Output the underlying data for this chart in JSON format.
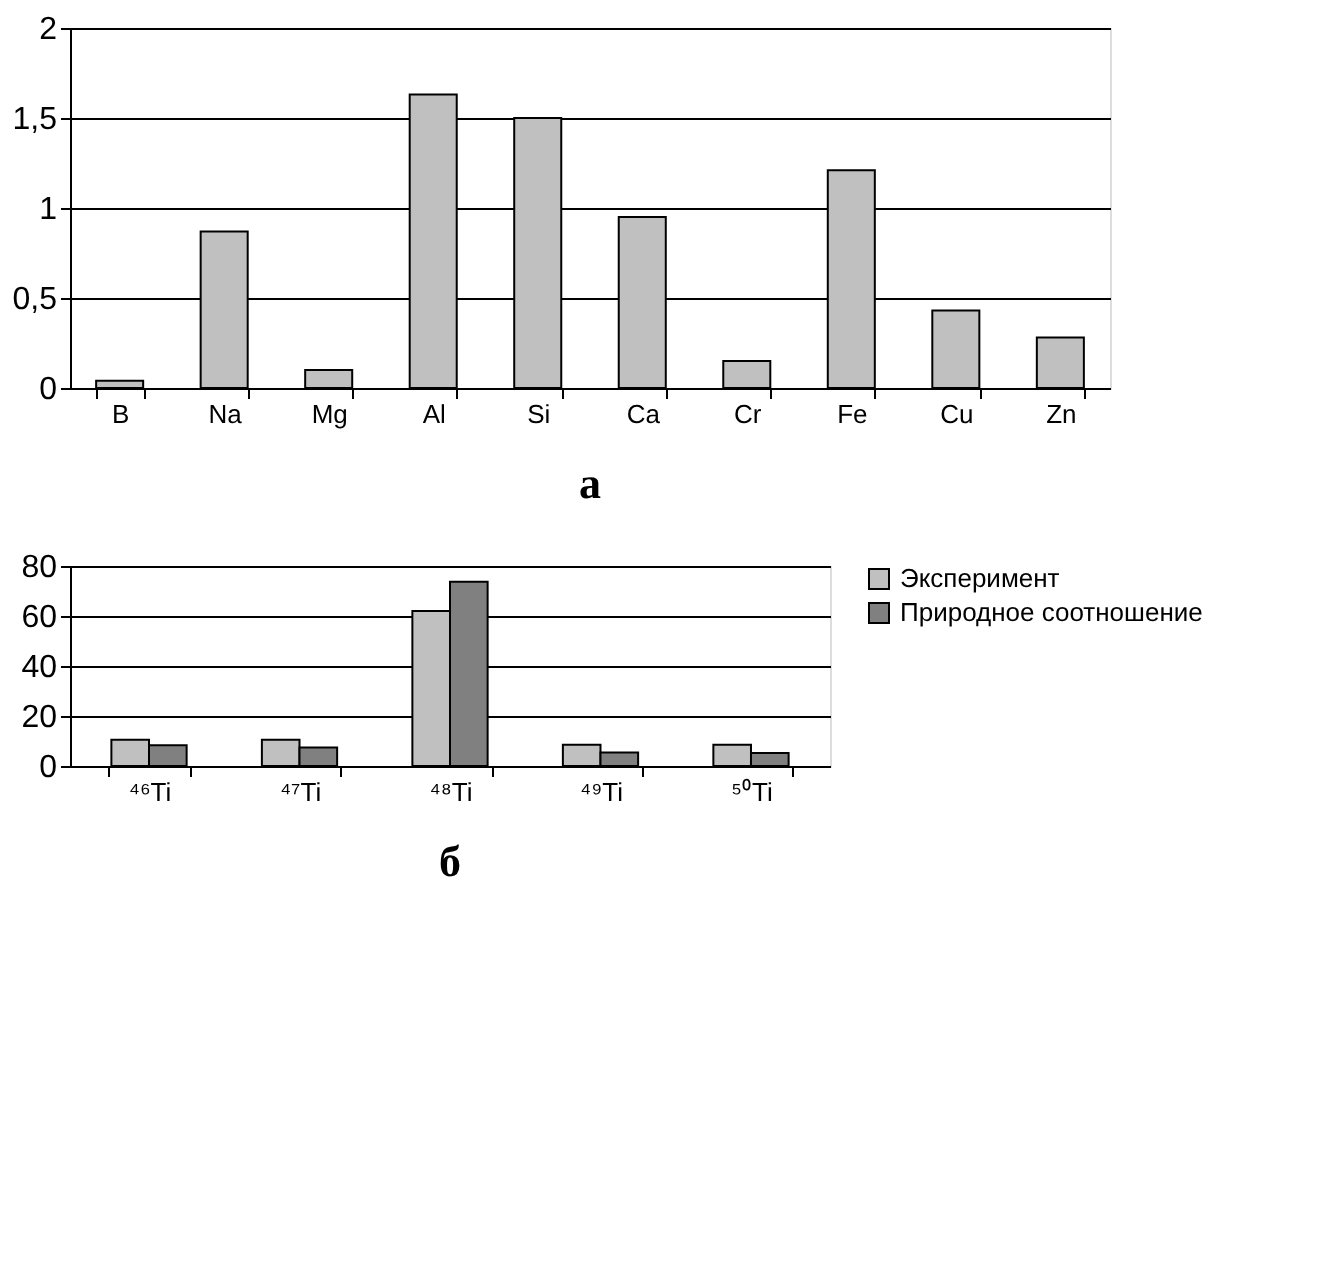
{
  "chart_data": [
    {
      "type": "bar",
      "title": "а",
      "categories": [
        "B",
        "Na",
        "Mg",
        "Al",
        "Si",
        "Ca",
        "Cr",
        "Fe",
        "Cu",
        "Zn"
      ],
      "values": [
        0.04,
        0.87,
        0.1,
        1.63,
        1.5,
        0.95,
        0.15,
        1.21,
        0.43,
        0.28
      ],
      "color": "#c0c0c0",
      "ylim": [
        0,
        2
      ],
      "yticks": [
        0,
        {
          "value": 0.5,
          "label": "0,5"
        },
        1,
        {
          "value": 1.5,
          "label": "1,5"
        },
        2
      ],
      "grid": "y",
      "legend": false
    },
    {
      "type": "bar",
      "title": "б",
      "categories": [
        "⁴⁶Ti",
        "⁴⁷Ti",
        "⁴⁸Ti",
        "⁴⁹Ti",
        "⁵⁰Ti"
      ],
      "series": [
        {
          "name": "Эксперимент",
          "color": "#c0c0c0",
          "values": [
            10.5,
            10.5,
            62,
            8.5,
            8.5
          ]
        },
        {
          "name": "Природное соотношение",
          "color": "#808080",
          "values": [
            8.3,
            7.4,
            73.7,
            5.4,
            5.2
          ]
        }
      ],
      "ylim": [
        0,
        80
      ],
      "yticks": [
        0,
        20,
        40,
        60,
        80
      ],
      "grid": "y",
      "legend": "right"
    }
  ]
}
